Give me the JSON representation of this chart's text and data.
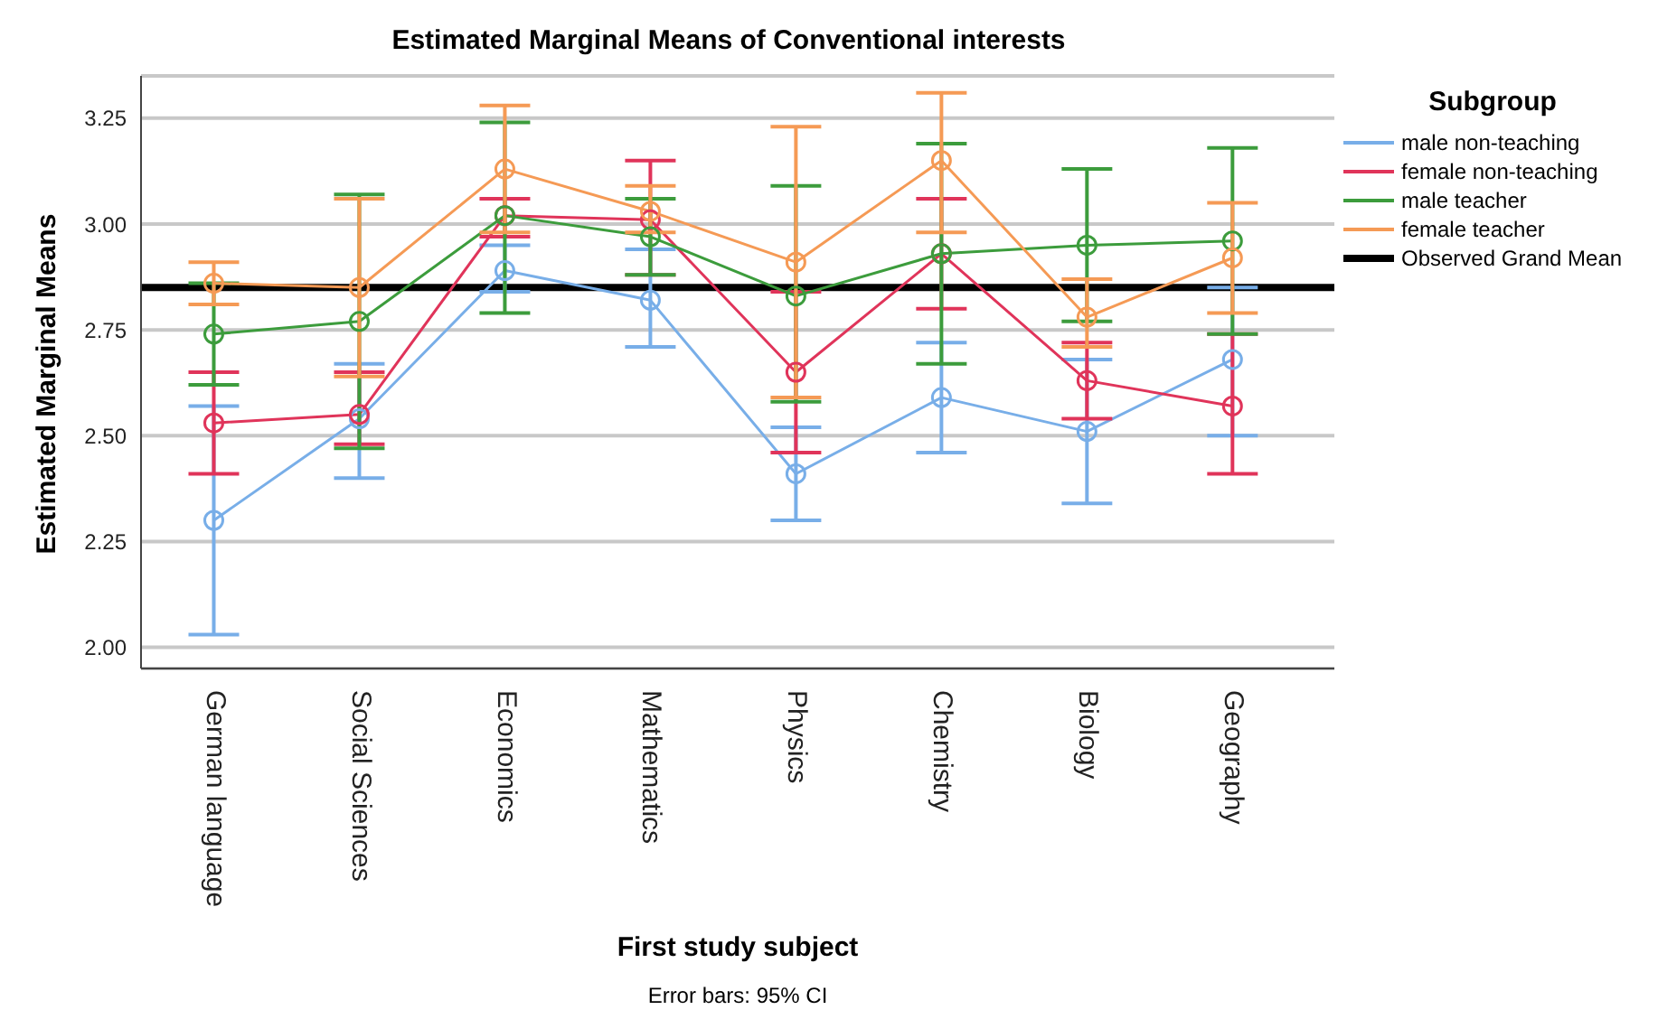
{
  "chart_data": {
    "type": "line",
    "title": "Estimated Marginal Means of Conventional interests",
    "xlabel": "First study subject",
    "ylabel": "Estimated Marginal Means",
    "legend_title": "Subgroup",
    "legend": "right",
    "grid": "y",
    "marker": "circle",
    "line_style": "solid",
    "categories": [
      "German language",
      "Social Sciences",
      "Economics",
      "Mathematics",
      "Physics",
      "Chemistry",
      "Biology",
      "Geography"
    ],
    "ylim": [
      1.95,
      3.35
    ],
    "yticks": [
      {
        "value": 2,
        "label": "2.00"
      },
      {
        "value": 2.25,
        "label": "2.25"
      },
      {
        "value": 2.5,
        "label": "2.50"
      },
      {
        "value": 2.75,
        "label": "2.75"
      },
      {
        "value": 3,
        "label": "3.00"
      },
      {
        "value": 3.25,
        "label": "3.25"
      }
    ],
    "series": [
      {
        "name": "male non-teaching",
        "color": "#78aee8",
        "values": [
          2.3,
          2.54,
          2.89,
          2.82,
          2.41,
          2.59,
          2.51,
          2.68
        ],
        "errors": [
          [
            2.03,
            2.57
          ],
          [
            2.4,
            2.67
          ],
          [
            2.84,
            2.95
          ],
          [
            2.71,
            2.94
          ],
          [
            2.3,
            2.52
          ],
          [
            2.46,
            2.72
          ],
          [
            2.34,
            2.68
          ],
          [
            2.5,
            2.85
          ]
        ]
      },
      {
        "name": "female non-teaching",
        "color": "#e0345a",
        "values": [
          2.53,
          2.55,
          3.02,
          3.01,
          2.65,
          2.93,
          2.63,
          2.57
        ],
        "errors": [
          [
            2.41,
            2.65
          ],
          [
            2.48,
            2.65
          ],
          [
            2.97,
            3.06
          ],
          [
            2.88,
            3.15
          ],
          [
            2.46,
            2.84
          ],
          [
            2.8,
            3.06
          ],
          [
            2.54,
            2.72
          ],
          [
            2.41,
            2.74
          ]
        ]
      },
      {
        "name": "male teacher",
        "color": "#3c9c3c",
        "values": [
          2.74,
          2.77,
          3.02,
          2.97,
          2.83,
          2.93,
          2.95,
          2.96
        ],
        "errors": [
          [
            2.62,
            2.86
          ],
          [
            2.47,
            3.07
          ],
          [
            2.79,
            3.24
          ],
          [
            2.88,
            3.06
          ],
          [
            2.58,
            3.09
          ],
          [
            2.67,
            3.19
          ],
          [
            2.77,
            3.13
          ],
          [
            2.74,
            3.18
          ]
        ]
      },
      {
        "name": "female teacher",
        "color": "#f59a55",
        "values": [
          2.86,
          2.85,
          3.13,
          3.03,
          2.91,
          3.15,
          2.78,
          2.92
        ],
        "errors": [
          [
            2.81,
            2.91
          ],
          [
            2.64,
            3.06
          ],
          [
            2.98,
            3.28
          ],
          [
            2.98,
            3.09
          ],
          [
            2.59,
            3.23
          ],
          [
            2.98,
            3.31
          ],
          [
            2.71,
            2.87
          ],
          [
            2.79,
            3.05
          ]
        ]
      }
    ],
    "ref_lines": [
      {
        "axis": "y",
        "value": 2.85,
        "label": "Observed Grand Mean",
        "color": "#000000",
        "line_style": "solid"
      }
    ],
    "annotations": [
      "Error bars: 95% CI"
    ]
  }
}
